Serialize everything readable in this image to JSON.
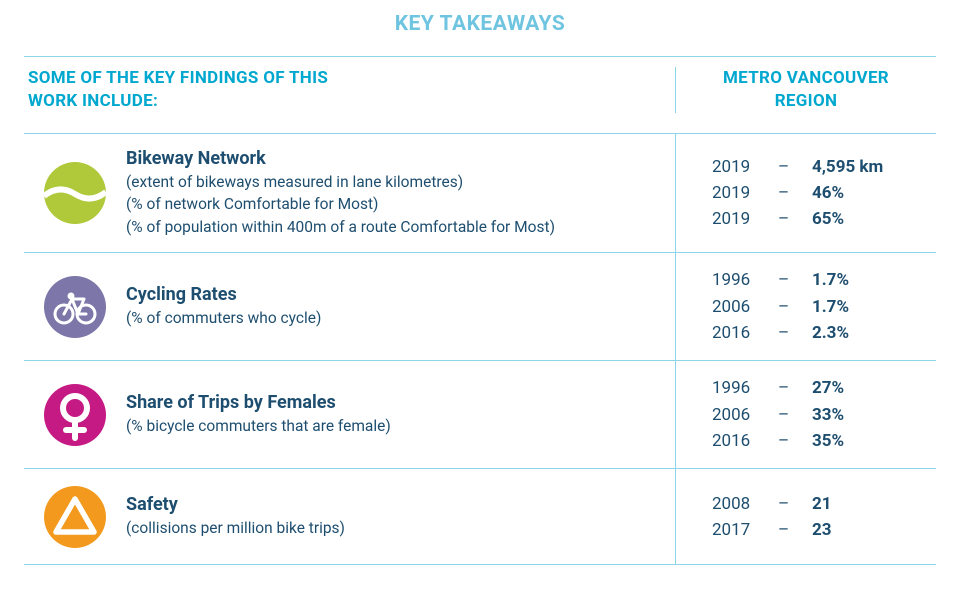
{
  "colors": {
    "title": "#6fc5e0",
    "header_text": "#00a7ce",
    "border": "#8fd5e8",
    "body_text": "#1e4e6f",
    "icon_bikeway": "#afc93b",
    "icon_cycling": "#7c77a8",
    "icon_female": "#c51a84",
    "icon_safety": "#f39a1e",
    "icon_stroke": "#ffffff"
  },
  "typography": {
    "title_fontsize": 21,
    "header_fontsize": 17,
    "row_title_fontsize": 18,
    "row_sub_fontsize": 15.5,
    "stat_fontsize": 17
  },
  "title": "KEY TAKEAWAYS",
  "header": {
    "left_line1": "SOME OF THE KEY FINDINGS OF THIS",
    "left_line2": "WORK INCLUDE:",
    "right_line1": "METRO VANCOUVER",
    "right_line2": "REGION"
  },
  "rows": [
    {
      "icon": "bikeway",
      "title": "Bikeway Network",
      "subs": [
        "(extent of bikeways measured in lane kilometres)",
        "(% of network Comfortable for Most)",
        "(% of population within 400m of a route Comfortable for Most)"
      ],
      "stats": [
        {
          "year": "2019",
          "value": "4,595 km"
        },
        {
          "year": "2019",
          "value": "46%"
        },
        {
          "year": "2019",
          "value": "65%"
        }
      ]
    },
    {
      "icon": "cycling",
      "title": "Cycling Rates",
      "subs": [
        "(% of commuters who cycle)"
      ],
      "stats": [
        {
          "year": "1996",
          "value": "1.7%"
        },
        {
          "year": "2006",
          "value": "1.7%"
        },
        {
          "year": "2016",
          "value": "2.3%"
        }
      ]
    },
    {
      "icon": "female",
      "title": "Share of Trips by Females",
      "subs": [
        "(% bicycle commuters that are female)"
      ],
      "stats": [
        {
          "year": "1996",
          "value": "27%"
        },
        {
          "year": "2006",
          "value": "33%"
        },
        {
          "year": "2016",
          "value": "35%"
        }
      ]
    },
    {
      "icon": "safety",
      "title": "Safety",
      "subs": [
        "(collisions per million bike trips)"
      ],
      "stats": [
        {
          "year": "2008",
          "value": "21"
        },
        {
          "year": "2017",
          "value": "23"
        }
      ]
    }
  ]
}
